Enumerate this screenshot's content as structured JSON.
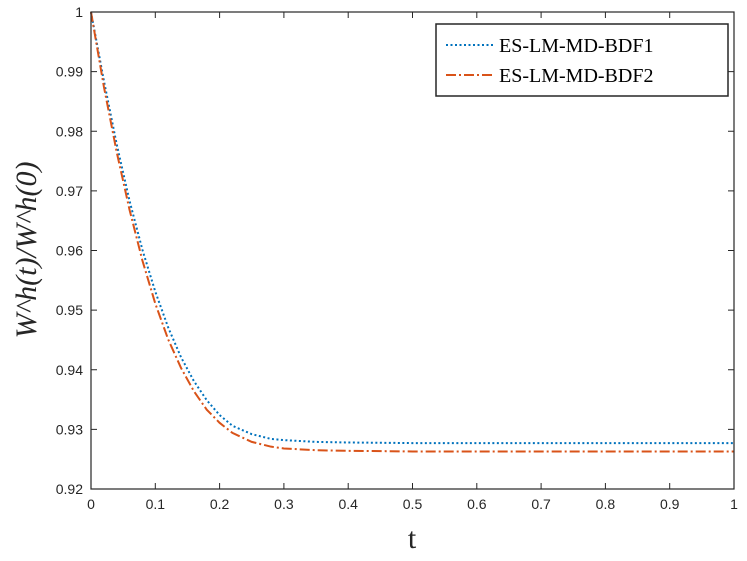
{
  "chart_data": {
    "type": "line",
    "xlabel": "t",
    "ylabel": "W^h(t)/W^h(0)",
    "xlim": [
      0,
      1
    ],
    "ylim": [
      0.92,
      1
    ],
    "xticks": [
      0,
      0.1,
      0.2,
      0.3,
      0.4,
      0.5,
      0.6,
      0.7,
      0.8,
      0.9,
      1
    ],
    "xtick_labels": [
      "0",
      "0.1",
      "0.2",
      "0.3",
      "0.4",
      "0.5",
      "0.6",
      "0.7",
      "0.8",
      "0.9",
      "1"
    ],
    "yticks": [
      0.92,
      0.93,
      0.94,
      0.95,
      0.96,
      0.97,
      0.98,
      0.99,
      1
    ],
    "ytick_labels": [
      "0.92",
      "0.93",
      "0.94",
      "0.95",
      "0.96",
      "0.97",
      "0.98",
      "0.99",
      "1"
    ],
    "grid": false,
    "legend_position": "top-right",
    "series": [
      {
        "name": "ES-LM-MD-BDF1",
        "color": "#0072BD",
        "style": "dotted",
        "x": [
          0,
          0.02,
          0.04,
          0.06,
          0.08,
          0.1,
          0.12,
          0.14,
          0.16,
          0.18,
          0.2,
          0.22,
          0.25,
          0.28,
          0.3,
          0.35,
          0.4,
          0.5,
          0.6,
          0.7,
          0.8,
          0.9,
          1
        ],
        "y": [
          1,
          0.9885,
          0.9778,
          0.9683,
          0.9601,
          0.9531,
          0.9471,
          0.9421,
          0.9381,
          0.9349,
          0.9324,
          0.9306,
          0.9292,
          0.9284,
          0.9282,
          0.9279,
          0.9278,
          0.9277,
          0.9277,
          0.9277,
          0.9277,
          0.9277,
          0.9277
        ]
      },
      {
        "name": "ES-LM-MD-BDF2",
        "color": "#D95319",
        "style": "dashdot",
        "x": [
          0,
          0.02,
          0.04,
          0.06,
          0.08,
          0.1,
          0.12,
          0.14,
          0.16,
          0.18,
          0.2,
          0.22,
          0.25,
          0.28,
          0.3,
          0.35,
          0.4,
          0.5,
          0.6,
          0.7,
          0.8,
          0.9,
          1
        ],
        "y": [
          1,
          0.9875,
          0.9765,
          0.9668,
          0.9583,
          0.9511,
          0.9451,
          0.9403,
          0.9364,
          0.9333,
          0.9311,
          0.9294,
          0.9279,
          0.9271,
          0.9268,
          0.9265,
          0.9264,
          0.9263,
          0.9263,
          0.9263,
          0.9263,
          0.9263,
          0.9263
        ]
      }
    ]
  }
}
